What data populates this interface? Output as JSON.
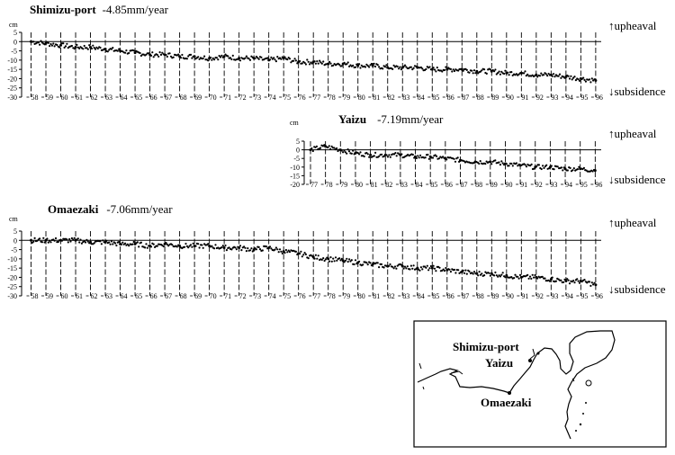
{
  "chart_data": [
    {
      "type": "scatter",
      "station": "Shimizu-port",
      "rate": "-4.85mm/year",
      "ylabel": "cm",
      "upheaval_label": "↑upheaval",
      "subsidence_label": "↓subsidence",
      "ylim": [
        -30,
        5
      ],
      "yticks": [
        5,
        0,
        -5,
        -10,
        -15,
        -20,
        -25,
        -30
      ],
      "xlim": [
        1957.5,
        1996.8
      ],
      "xticks": [
        "58",
        "59",
        "60",
        "61",
        "62",
        "63",
        "64",
        "65",
        "66",
        "67",
        "68",
        "69",
        "70",
        "71",
        "72",
        "73",
        "74",
        "75",
        "76",
        "77",
        "78",
        "79",
        "80",
        "81",
        "82",
        "83",
        "84",
        "85",
        "86",
        "87",
        "88",
        "89",
        "90",
        "91",
        "92",
        "93",
        "94",
        "95",
        "96"
      ],
      "x": [
        1958.0,
        1959.0,
        1960.0,
        1961.0,
        1962.0,
        1963.0,
        1964.0,
        1965.0,
        1966.0,
        1967.0,
        1968.0,
        1969.0,
        1970.0,
        1971.0,
        1972.0,
        1973.0,
        1974.0,
        1975.0,
        1976.0,
        1977.0,
        1978.0,
        1979.0,
        1980.0,
        1981.0,
        1982.0,
        1983.0,
        1984.0,
        1985.0,
        1986.0,
        1987.0,
        1988.0,
        1989.0,
        1990.0,
        1991.0,
        1992.0,
        1993.0,
        1994.0,
        1995.0,
        1996.0
      ],
      "y": [
        0,
        -1,
        -2,
        -3,
        -3,
        -4,
        -5,
        -6,
        -7,
        -7,
        -8,
        -8,
        -9,
        -8,
        -9,
        -9,
        -10,
        -9,
        -11,
        -11,
        -12,
        -12,
        -13,
        -13,
        -14,
        -14,
        -14,
        -15,
        -15,
        -15,
        -16,
        -16,
        -17,
        -17,
        -18,
        -18,
        -19,
        -20,
        -21
      ]
    },
    {
      "type": "scatter",
      "station": "Yaizu",
      "rate": "-7.19mm/year",
      "ylabel": "cm",
      "upheaval_label": "↑upheaval",
      "subsidence_label": "↓subsidence",
      "ylim": [
        -20,
        5
      ],
      "yticks": [
        5,
        0,
        -5,
        -10,
        -15,
        -20
      ],
      "xlim": [
        1976.5,
        1996.8
      ],
      "xticks": [
        "77",
        "78",
        "79",
        "80",
        "81",
        "82",
        "83",
        "84",
        "85",
        "86",
        "87",
        "88",
        "89",
        "90",
        "91",
        "92",
        "93",
        "94",
        "95",
        "96"
      ],
      "x": [
        1977.0,
        1978.0,
        1979.0,
        1980.0,
        1981.0,
        1982.0,
        1983.0,
        1984.0,
        1985.0,
        1986.0,
        1987.0,
        1988.0,
        1989.0,
        1990.0,
        1991.0,
        1992.0,
        1993.0,
        1994.0,
        1995.0,
        1996.0
      ],
      "y": [
        0,
        2,
        0,
        -2,
        -3,
        -3,
        -3,
        -4,
        -4,
        -5,
        -6,
        -7,
        -7,
        -8,
        -9,
        -10,
        -10,
        -11,
        -11,
        -12
      ]
    },
    {
      "type": "scatter",
      "station": "Omaezaki",
      "rate": "-7.06mm/year",
      "ylabel": "cm",
      "upheaval_label": "↑upheaval",
      "subsidence_label": "↓subsidence",
      "ylim": [
        -30,
        5
      ],
      "yticks": [
        5,
        0,
        -5,
        -10,
        -15,
        -20,
        -25,
        -30
      ],
      "xlim": [
        1957.5,
        1996.8
      ],
      "xticks": [
        "58",
        "59",
        "60",
        "61",
        "62",
        "63",
        "64",
        "65",
        "66",
        "67",
        "68",
        "69",
        "70",
        "71",
        "72",
        "73",
        "74",
        "75",
        "76",
        "77",
        "78",
        "79",
        "80",
        "81",
        "82",
        "83",
        "84",
        "85",
        "86",
        "87",
        "88",
        "89",
        "90",
        "91",
        "92",
        "93",
        "94",
        "95",
        "96"
      ],
      "x": [
        1958.0,
        1959.0,
        1960.0,
        1961.0,
        1962.0,
        1963.0,
        1964.0,
        1965.0,
        1966.0,
        1967.0,
        1968.0,
        1969.0,
        1970.0,
        1971.0,
        1972.0,
        1973.0,
        1974.0,
        1975.0,
        1976.0,
        1977.0,
        1978.0,
        1979.0,
        1980.0,
        1981.0,
        1982.0,
        1983.0,
        1984.0,
        1985.0,
        1986.0,
        1987.0,
        1988.0,
        1989.0,
        1990.0,
        1991.0,
        1992.0,
        1993.0,
        1994.0,
        1995.0,
        1996.0
      ],
      "y": [
        0,
        0,
        0,
        0,
        -1,
        -1,
        -2,
        -2,
        -3,
        -2,
        -3,
        -3,
        -3,
        -4,
        -4,
        -5,
        -4,
        -6,
        -7,
        -9,
        -10,
        -11,
        -12,
        -13,
        -14,
        -14,
        -15,
        -15,
        -16,
        -17,
        -18,
        -18,
        -19,
        -20,
        -20,
        -21,
        -22,
        -22,
        -24
      ]
    }
  ],
  "map": {
    "labels": {
      "shimizu": "Shimizu-port",
      "yaizu": "Yaizu",
      "omaezaki": "Omaezaki"
    }
  }
}
